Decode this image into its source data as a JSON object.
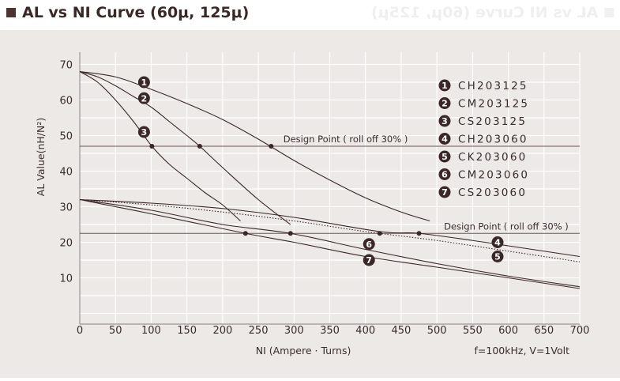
{
  "page": {
    "title": "AL vs NI Curve (60μ, 125μ)",
    "mirror_title": "AL vs NI Curve (60μ, 125μ)"
  },
  "colors": {
    "panel_bg": "#ece9e6",
    "grid": "#ffffff",
    "curve": "#3a2828",
    "text": "#3a2c2c",
    "heading_square": "#4a3535"
  },
  "chart_data": {
    "type": "line",
    "title": "",
    "xlabel": "NI (Ampere · Turns)",
    "ylabel": "AL Value(nH/N²)",
    "condition_note": "f=100kHz, V=1Volt",
    "xlim": [
      0,
      700
    ],
    "ylim": [
      0,
      75
    ],
    "x_ticks": [
      0,
      50,
      100,
      150,
      200,
      250,
      300,
      350,
      400,
      450,
      500,
      550,
      600,
      650,
      700
    ],
    "y_ticks": [
      10,
      20,
      30,
      40,
      50,
      60,
      70
    ],
    "grid": true,
    "legend_position": "top-right",
    "series": [
      {
        "name": "CH203125",
        "marker": "1",
        "style": "solid",
        "x": [
          0,
          50,
          100,
          150,
          200,
          250,
          300,
          350,
          400,
          450,
          490
        ],
        "y": [
          68,
          66.5,
          63,
          59,
          54.5,
          49,
          43,
          37.5,
          32.5,
          28.5,
          26
        ],
        "label_at": [
          90,
          65
        ]
      },
      {
        "name": "CM203125",
        "marker": "2",
        "style": "solid",
        "x": [
          0,
          25,
          50,
          75,
          100,
          125,
          150,
          168,
          200,
          250,
          295
        ],
        "y": [
          68,
          66.5,
          64,
          61,
          58,
          54,
          50,
          47,
          41,
          32,
          25
        ],
        "label_at": [
          90,
          60.5
        ]
      },
      {
        "name": "CS203125",
        "marker": "3",
        "style": "solid",
        "x": [
          0,
          25,
          50,
          75,
          101,
          125,
          150,
          175,
          200,
          225
        ],
        "y": [
          68,
          65,
          60,
          54,
          47,
          42,
          38,
          34,
          30.5,
          26
        ],
        "label_at": [
          90,
          51
        ]
      },
      {
        "name": "CH203060",
        "marker": "4",
        "style": "solid",
        "x": [
          0,
          100,
          200,
          300,
          420,
          475,
          550,
          600,
          650,
          700
        ],
        "y": [
          32,
          31,
          29.5,
          27,
          23,
          22.5,
          20.5,
          19,
          17.5,
          16
        ],
        "label_at": [
          585,
          20
        ]
      },
      {
        "name": "CK203060",
        "marker": "5",
        "style": "dotted",
        "x": [
          0,
          100,
          200,
          300,
          400,
          500,
          600,
          700
        ],
        "y": [
          32,
          30.5,
          28.5,
          26,
          23,
          20.5,
          17.5,
          14.5
        ],
        "label_at": [
          585,
          16
        ]
      },
      {
        "name": "CM203060",
        "marker": "6",
        "style": "solid",
        "x": [
          0,
          100,
          200,
          295,
          400,
          500,
          600,
          700
        ],
        "y": [
          32,
          29,
          25,
          22.5,
          18,
          14,
          10.5,
          7.5
        ],
        "label_at": [
          405,
          19.5
        ]
      },
      {
        "name": "CS203060",
        "marker": "7",
        "style": "solid",
        "x": [
          0,
          100,
          232,
          300,
          400,
          500,
          600,
          700
        ],
        "y": [
          32,
          28,
          22.5,
          20,
          16,
          13,
          10,
          7
        ],
        "label_at": [
          405,
          15
        ]
      }
    ],
    "design_points": [
      {
        "series": "CH203125",
        "x": 268,
        "y": 47
      },
      {
        "series": "CM203125",
        "x": 168,
        "y": 47
      },
      {
        "series": "CS203125",
        "x": 101,
        "y": 47
      },
      {
        "series": "CH203060",
        "x": 475,
        "y": 22.5
      },
      {
        "series": "CK203060",
        "x": 420,
        "y": 22.5
      },
      {
        "series": "CM203060",
        "x": 295,
        "y": 22.5
      },
      {
        "series": "CS203060",
        "x": 232,
        "y": 22.5
      }
    ],
    "annotations": [
      {
        "text": "Design Point ( roll off 30% )",
        "y_level": 47,
        "x_data": 285
      },
      {
        "text": "Design Point ( roll off 30% )",
        "y_level": 22.5,
        "x_data": 510
      }
    ]
  }
}
